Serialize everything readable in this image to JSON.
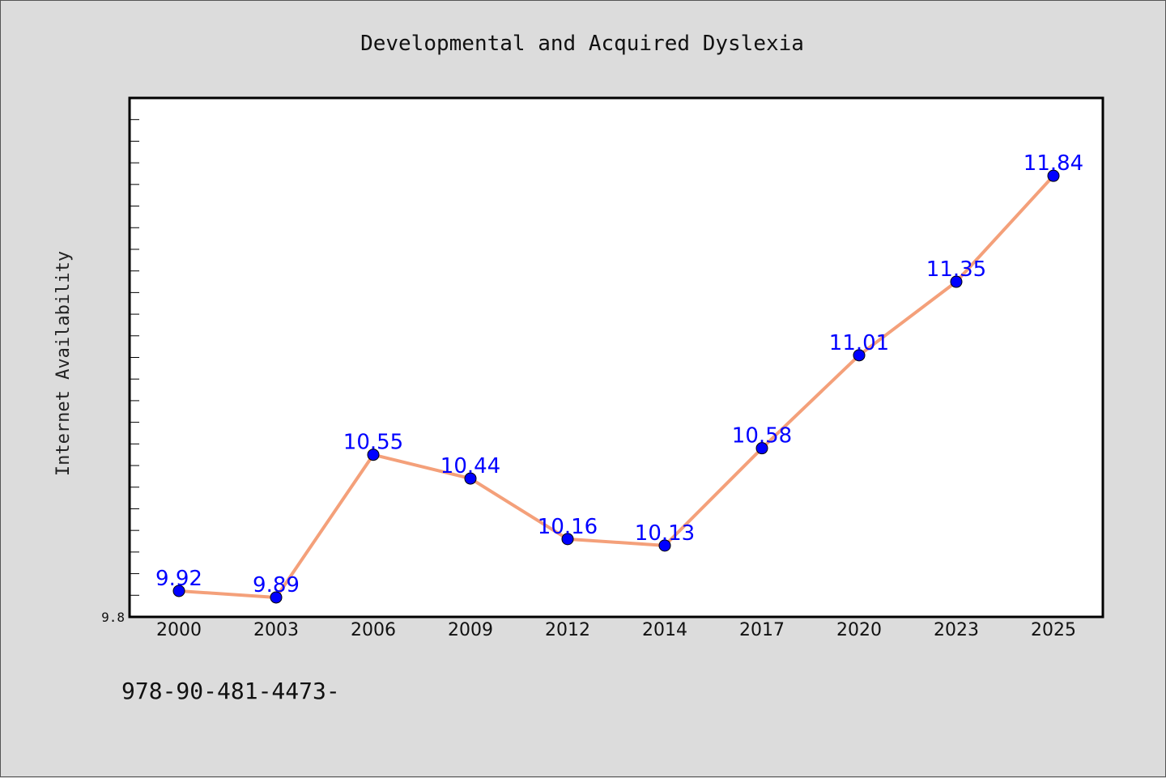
{
  "chart_data": {
    "type": "line",
    "title": "Developmental and Acquired Dyslexia",
    "xlabel": "",
    "ylabel": "Internet Availability",
    "categories": [
      "2000",
      "2003",
      "2006",
      "2009",
      "2012",
      "2014",
      "2017",
      "2020",
      "2023",
      "2025"
    ],
    "values": [
      9.92,
      9.89,
      10.55,
      10.44,
      10.16,
      10.13,
      10.58,
      11.01,
      11.35,
      11.84
    ],
    "data_labels": [
      "9.92",
      "9.89",
      "10.55",
      "10.44",
      "10.16",
      "10.13",
      "10.58",
      "11.01",
      "11.35",
      "11.84"
    ],
    "ylim": [
      9.8,
      12.2
    ],
    "y_tick_labels": [
      "9.8"
    ],
    "grid": false,
    "line_color": "#f4a07a",
    "marker_color": "#0000ff",
    "label_color": "#0000ff",
    "plot_background": "#ffffff",
    "page_background": "#dcdcdc"
  },
  "footer": {
    "isbn_text": "978-90-481-4473-"
  }
}
